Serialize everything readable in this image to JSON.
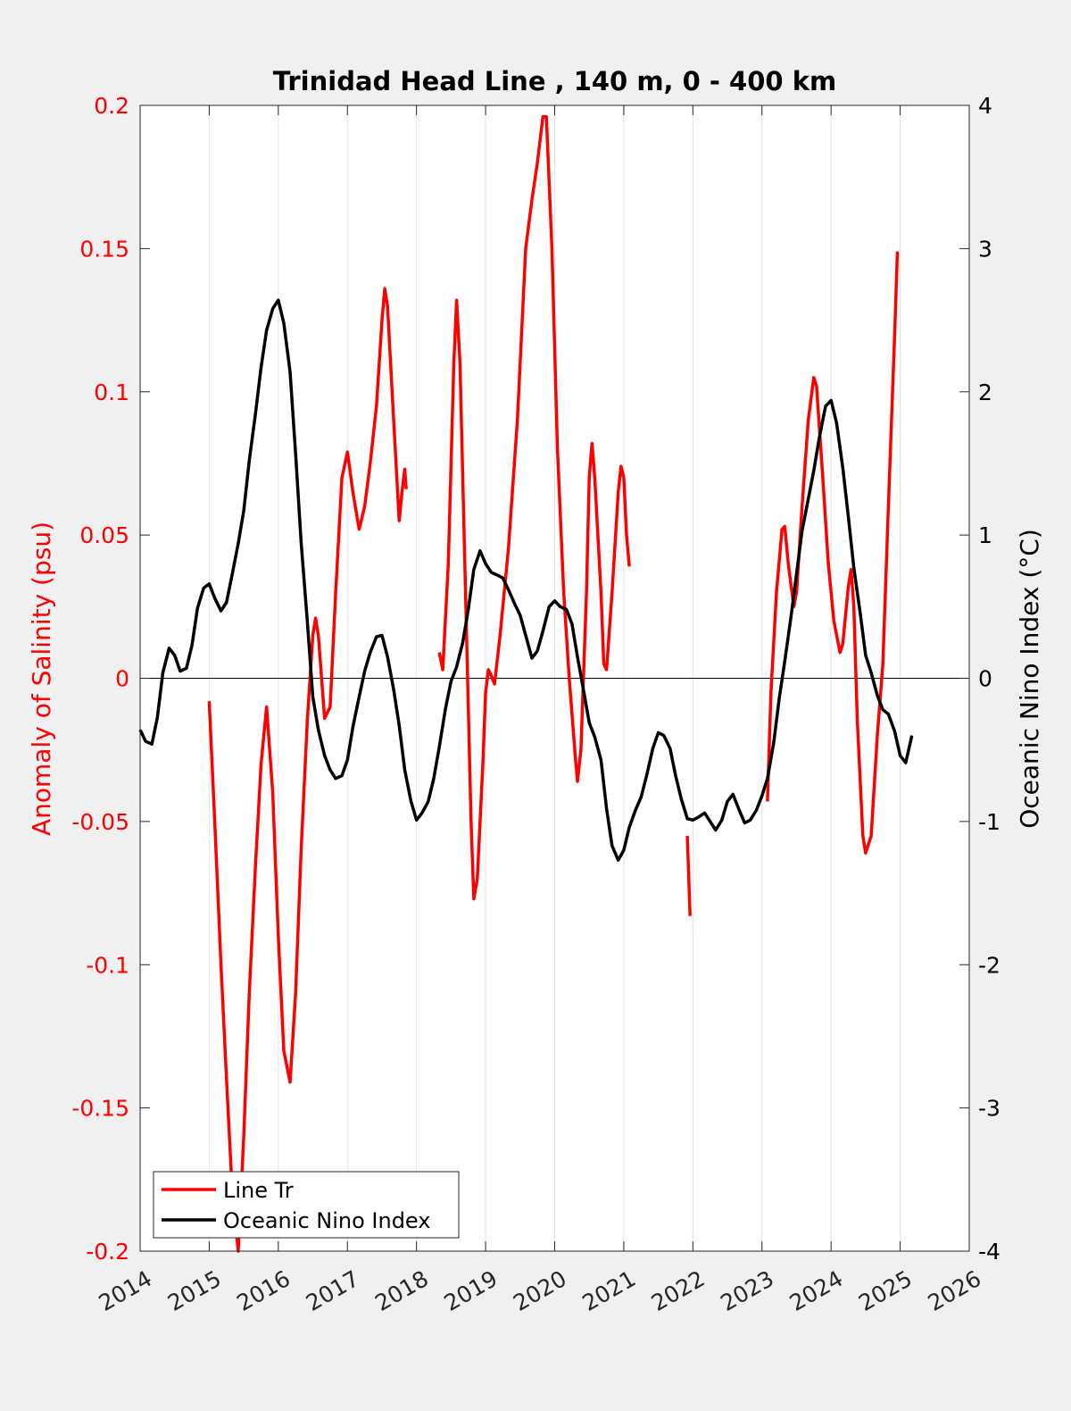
{
  "chart_data": {
    "type": "line",
    "title": "Trinidad Head Line , 140 m, 0 - 400 km",
    "xlabel": "",
    "ylabel_left": "Anomaly of Salinity (psu)",
    "ylabel_right": "Oceanic Nino Index (°C)",
    "xlim": [
      2014,
      2026
    ],
    "ylim_left": [
      -0.2,
      0.2
    ],
    "ylim_right": [
      -4,
      4
    ],
    "grid": "vertical",
    "legend_position": "bottom-left",
    "x_ticks": [
      "2014",
      "2015",
      "2016",
      "2017",
      "2018",
      "2019",
      "2020",
      "2021",
      "2022",
      "2023",
      "2024",
      "2025",
      "2026"
    ],
    "y_ticks_left": [
      "0.2",
      "0.15",
      "0.1",
      "0.05",
      "0",
      "-0.05",
      "-0.1",
      "-0.15",
      "-0.2"
    ],
    "y_ticks_right": [
      "4",
      "3",
      "2",
      "1",
      "0",
      "-1",
      "-2",
      "-3",
      "-4"
    ],
    "colors": {
      "salinity": "#ff0000",
      "oni": "#000000",
      "left_axis": "#ff0000",
      "right_axis": "#000000"
    },
    "series": [
      {
        "name": "Line Tr",
        "axis": "left",
        "segments": [
          [
            [
              2015.0,
              -0.008
            ],
            [
              2015.08,
              -0.05
            ],
            [
              2015.17,
              -0.1
            ],
            [
              2015.25,
              -0.14
            ],
            [
              2015.33,
              -0.178
            ],
            [
              2015.42,
              -0.2
            ],
            [
              2015.5,
              -0.16
            ],
            [
              2015.58,
              -0.11
            ],
            [
              2015.67,
              -0.065
            ],
            [
              2015.75,
              -0.03
            ],
            [
              2015.83,
              -0.01
            ],
            [
              2015.92,
              -0.04
            ],
            [
              2016.0,
              -0.09
            ],
            [
              2016.08,
              -0.13
            ],
            [
              2016.17,
              -0.141
            ],
            [
              2016.25,
              -0.11
            ],
            [
              2016.33,
              -0.06
            ],
            [
              2016.42,
              -0.015
            ],
            [
              2016.5,
              0.015
            ],
            [
              2016.54,
              0.021
            ],
            [
              2016.58,
              0.015
            ],
            [
              2016.67,
              -0.014
            ],
            [
              2016.75,
              -0.01
            ],
            [
              2016.83,
              0.03
            ],
            [
              2016.92,
              0.07
            ],
            [
              2017.0,
              0.079
            ],
            [
              2017.08,
              0.065
            ],
            [
              2017.17,
              0.052
            ],
            [
              2017.25,
              0.06
            ],
            [
              2017.33,
              0.075
            ],
            [
              2017.42,
              0.095
            ],
            [
              2017.5,
              0.125
            ],
            [
              2017.54,
              0.136
            ],
            [
              2017.58,
              0.13
            ],
            [
              2017.67,
              0.09
            ],
            [
              2017.75,
              0.055
            ],
            [
              2017.79,
              0.065
            ],
            [
              2017.83,
              0.073
            ],
            [
              2017.85,
              0.066
            ]
          ],
          [
            [
              2018.33,
              0.009
            ],
            [
              2018.38,
              0.003
            ],
            [
              2018.46,
              0.04
            ],
            [
              2018.54,
              0.11
            ],
            [
              2018.58,
              0.132
            ],
            [
              2018.63,
              0.11
            ],
            [
              2018.71,
              0.03
            ],
            [
              2018.79,
              -0.05
            ],
            [
              2018.83,
              -0.077
            ],
            [
              2018.88,
              -0.07
            ],
            [
              2018.96,
              -0.03
            ],
            [
              2019.0,
              -0.005
            ],
            [
              2019.04,
              0.003
            ],
            [
              2019.08,
              0.001
            ],
            [
              2019.13,
              -0.002
            ],
            [
              2019.21,
              0.015
            ],
            [
              2019.33,
              0.045
            ],
            [
              2019.46,
              0.09
            ],
            [
              2019.58,
              0.15
            ],
            [
              2019.67,
              0.167
            ],
            [
              2019.75,
              0.18
            ],
            [
              2019.83,
              0.196
            ],
            [
              2019.88,
              0.196
            ],
            [
              2019.96,
              0.15
            ],
            [
              2020.04,
              0.08
            ],
            [
              2020.13,
              0.03
            ],
            [
              2020.21,
              0.0
            ],
            [
              2020.29,
              -0.025
            ],
            [
              2020.33,
              -0.036
            ],
            [
              2020.38,
              -0.025
            ],
            [
              2020.46,
              0.03
            ],
            [
              2020.5,
              0.07
            ],
            [
              2020.54,
              0.082
            ],
            [
              2020.58,
              0.07
            ],
            [
              2020.67,
              0.03
            ],
            [
              2020.71,
              0.005
            ],
            [
              2020.75,
              0.003
            ],
            [
              2020.83,
              0.03
            ],
            [
              2020.92,
              0.065
            ],
            [
              2020.96,
              0.074
            ],
            [
              2021.0,
              0.07
            ],
            [
              2021.04,
              0.05
            ],
            [
              2021.08,
              0.039
            ]
          ],
          [
            [
              2021.92,
              -0.055
            ],
            [
              2021.96,
              -0.083
            ]
          ],
          [
            [
              2023.08,
              -0.043
            ],
            [
              2023.13,
              -0.005
            ],
            [
              2023.21,
              0.03
            ],
            [
              2023.29,
              0.052
            ],
            [
              2023.33,
              0.053
            ],
            [
              2023.38,
              0.04
            ],
            [
              2023.46,
              0.025
            ],
            [
              2023.5,
              0.03
            ],
            [
              2023.58,
              0.06
            ],
            [
              2023.67,
              0.09
            ],
            [
              2023.75,
              0.105
            ],
            [
              2023.79,
              0.102
            ],
            [
              2023.88,
              0.07
            ],
            [
              2023.96,
              0.04
            ],
            [
              2024.04,
              0.02
            ],
            [
              2024.13,
              0.009
            ],
            [
              2024.17,
              0.012
            ],
            [
              2024.25,
              0.032
            ],
            [
              2024.29,
              0.038
            ],
            [
              2024.33,
              0.025
            ],
            [
              2024.38,
              -0.015
            ],
            [
              2024.46,
              -0.055
            ],
            [
              2024.5,
              -0.061
            ],
            [
              2024.58,
              -0.055
            ],
            [
              2024.67,
              -0.02
            ],
            [
              2024.75,
              0.005
            ],
            [
              2024.83,
              0.06
            ],
            [
              2024.92,
              0.12
            ],
            [
              2024.96,
              0.149
            ]
          ]
        ]
      },
      {
        "name": "Oceanic Nino Index",
        "axis": "right",
        "segments": [
          [
            [
              2014.0,
              -0.36
            ],
            [
              2014.08,
              -0.44
            ],
            [
              2014.17,
              -0.46
            ],
            [
              2014.25,
              -0.27
            ],
            [
              2014.33,
              0.04
            ],
            [
              2014.42,
              0.21
            ],
            [
              2014.5,
              0.16
            ],
            [
              2014.58,
              0.05
            ],
            [
              2014.67,
              0.07
            ],
            [
              2014.75,
              0.23
            ],
            [
              2014.83,
              0.49
            ],
            [
              2014.92,
              0.63
            ],
            [
              2015.0,
              0.66
            ],
            [
              2015.08,
              0.56
            ],
            [
              2015.17,
              0.47
            ],
            [
              2015.25,
              0.53
            ],
            [
              2015.33,
              0.72
            ],
            [
              2015.42,
              0.94
            ],
            [
              2015.5,
              1.17
            ],
            [
              2015.58,
              1.52
            ],
            [
              2015.67,
              1.85
            ],
            [
              2015.75,
              2.17
            ],
            [
              2015.83,
              2.43
            ],
            [
              2015.92,
              2.58
            ],
            [
              2016.0,
              2.64
            ],
            [
              2016.08,
              2.48
            ],
            [
              2016.17,
              2.14
            ],
            [
              2016.25,
              1.57
            ],
            [
              2016.33,
              0.95
            ],
            [
              2016.42,
              0.4
            ],
            [
              2016.5,
              -0.13
            ],
            [
              2016.58,
              -0.36
            ],
            [
              2016.67,
              -0.54
            ],
            [
              2016.75,
              -0.64
            ],
            [
              2016.83,
              -0.7
            ],
            [
              2016.92,
              -0.68
            ],
            [
              2017.0,
              -0.57
            ],
            [
              2017.08,
              -0.34
            ],
            [
              2017.17,
              -0.13
            ],
            [
              2017.25,
              0.05
            ],
            [
              2017.33,
              0.18
            ],
            [
              2017.42,
              0.29
            ],
            [
              2017.5,
              0.3
            ],
            [
              2017.58,
              0.15
            ],
            [
              2017.67,
              -0.08
            ],
            [
              2017.75,
              -0.33
            ],
            [
              2017.83,
              -0.64
            ],
            [
              2017.92,
              -0.86
            ],
            [
              2018.0,
              -0.99
            ],
            [
              2018.08,
              -0.94
            ],
            [
              2018.17,
              -0.86
            ],
            [
              2018.25,
              -0.7
            ],
            [
              2018.33,
              -0.48
            ],
            [
              2018.42,
              -0.21
            ],
            [
              2018.5,
              -0.02
            ],
            [
              2018.58,
              0.08
            ],
            [
              2018.67,
              0.25
            ],
            [
              2018.75,
              0.48
            ],
            [
              2018.83,
              0.76
            ],
            [
              2018.92,
              0.89
            ],
            [
              2019.0,
              0.8
            ],
            [
              2019.08,
              0.74
            ],
            [
              2019.17,
              0.72
            ],
            [
              2019.25,
              0.7
            ],
            [
              2019.33,
              0.62
            ],
            [
              2019.42,
              0.52
            ],
            [
              2019.5,
              0.44
            ],
            [
              2019.58,
              0.3
            ],
            [
              2019.67,
              0.14
            ],
            [
              2019.75,
              0.19
            ],
            [
              2019.83,
              0.33
            ],
            [
              2019.92,
              0.5
            ],
            [
              2020.0,
              0.54
            ],
            [
              2020.08,
              0.5
            ],
            [
              2020.17,
              0.48
            ],
            [
              2020.25,
              0.38
            ],
            [
              2020.33,
              0.15
            ],
            [
              2020.42,
              -0.09
            ],
            [
              2020.5,
              -0.31
            ],
            [
              2020.58,
              -0.41
            ],
            [
              2020.67,
              -0.57
            ],
            [
              2020.75,
              -0.91
            ],
            [
              2020.83,
              -1.17
            ],
            [
              2020.92,
              -1.27
            ],
            [
              2021.0,
              -1.2
            ],
            [
              2021.08,
              -1.04
            ],
            [
              2021.17,
              -0.92
            ],
            [
              2021.25,
              -0.83
            ],
            [
              2021.33,
              -0.68
            ],
            [
              2021.42,
              -0.49
            ],
            [
              2021.5,
              -0.38
            ],
            [
              2021.58,
              -0.4
            ],
            [
              2021.67,
              -0.49
            ],
            [
              2021.75,
              -0.68
            ],
            [
              2021.83,
              -0.84
            ],
            [
              2021.92,
              -0.98
            ],
            [
              2022.0,
              -0.99
            ],
            [
              2022.08,
              -0.97
            ],
            [
              2022.17,
              -0.94
            ],
            [
              2022.25,
              -1.0
            ],
            [
              2022.33,
              -1.06
            ],
            [
              2022.42,
              -0.99
            ],
            [
              2022.5,
              -0.86
            ],
            [
              2022.58,
              -0.81
            ],
            [
              2022.67,
              -0.92
            ],
            [
              2022.75,
              -1.01
            ],
            [
              2022.83,
              -0.99
            ],
            [
              2022.92,
              -0.92
            ],
            [
              2023.0,
              -0.82
            ],
            [
              2023.08,
              -0.7
            ],
            [
              2023.17,
              -0.45
            ],
            [
              2023.25,
              -0.14
            ],
            [
              2023.33,
              0.12
            ],
            [
              2023.42,
              0.43
            ],
            [
              2023.5,
              0.73
            ],
            [
              2023.58,
              1.03
            ],
            [
              2023.67,
              1.25
            ],
            [
              2023.75,
              1.45
            ],
            [
              2023.83,
              1.68
            ],
            [
              2023.92,
              1.9
            ],
            [
              2024.0,
              1.94
            ],
            [
              2024.08,
              1.78
            ],
            [
              2024.17,
              1.47
            ],
            [
              2024.25,
              1.13
            ],
            [
              2024.33,
              0.77
            ],
            [
              2024.42,
              0.46
            ],
            [
              2024.5,
              0.16
            ],
            [
              2024.58,
              0.04
            ],
            [
              2024.67,
              -0.12
            ],
            [
              2024.75,
              -0.22
            ],
            [
              2024.83,
              -0.25
            ],
            [
              2024.92,
              -0.37
            ],
            [
              2025.0,
              -0.54
            ],
            [
              2025.08,
              -0.59
            ],
            [
              2025.17,
              -0.4
            ]
          ]
        ]
      }
    ]
  }
}
